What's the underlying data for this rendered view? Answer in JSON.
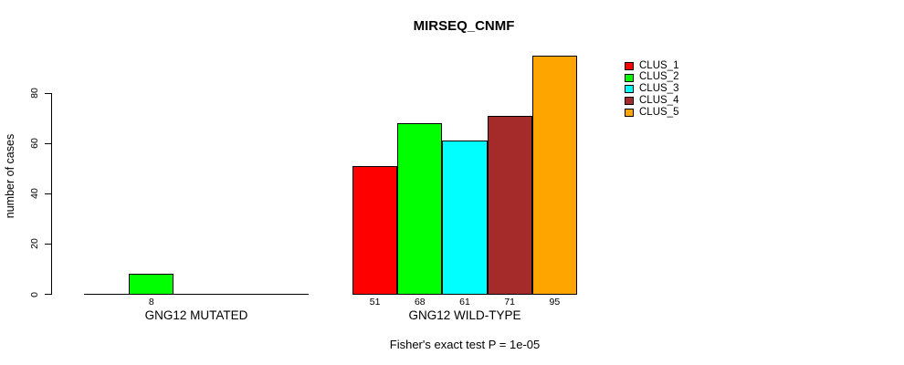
{
  "chart_data": {
    "type": "bar",
    "title": "MIRSEQ_CNMF",
    "ylabel": "number of cases",
    "xlabel": "",
    "categories": [
      "GNG12 MUTATED",
      "GNG12 WILD-TYPE"
    ],
    "series": [
      {
        "name": "CLUS_1",
        "color": "#FF0000",
        "values": [
          0,
          51
        ]
      },
      {
        "name": "CLUS_2",
        "color": "#00FF00",
        "values": [
          8,
          68
        ]
      },
      {
        "name": "CLUS_3",
        "color": "#00FFFF",
        "values": [
          0,
          61
        ]
      },
      {
        "name": "CLUS_4",
        "color": "#A52A2A",
        "values": [
          0,
          71
        ]
      },
      {
        "name": "CLUS_5",
        "color": "#FFA500",
        "values": [
          0,
          95
        ]
      }
    ],
    "yticks": [
      0,
      20,
      40,
      60,
      80
    ],
    "ylim": [
      0,
      96
    ],
    "grid": false,
    "show_value_labels": true,
    "bar_border_color": "#000000",
    "axis_color": "#000000",
    "legend": {
      "position": "right",
      "entries": [
        "CLUS_1",
        "CLUS_2",
        "CLUS_3",
        "CLUS_4",
        "CLUS_5"
      ]
    },
    "annotation": "Fisher's exact test P = 1e-05"
  }
}
